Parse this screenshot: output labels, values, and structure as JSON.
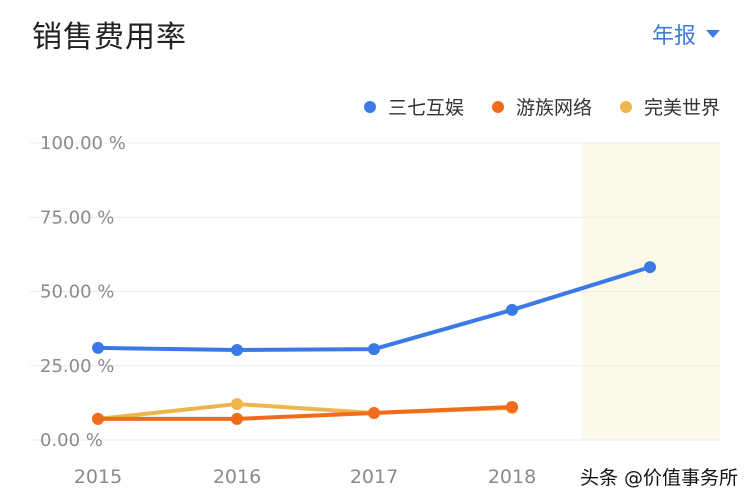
{
  "header": {
    "title": "销售费用率",
    "period_label": "年报"
  },
  "legend": [
    {
      "label": "三七互娱",
      "color": "#3b7ae6"
    },
    {
      "label": "游族网络",
      "color": "#f26b1d"
    },
    {
      "label": "完美世界",
      "color": "#f0b54a"
    }
  ],
  "watermark": "头条 @价值事务所",
  "chart_data": {
    "type": "line",
    "title": "销售费用率",
    "xlabel": "",
    "ylabel": "",
    "categories": [
      "2015",
      "2016",
      "2017",
      "2018",
      ""
    ],
    "y_ticks": [
      "100.00 %",
      "75.00 %",
      "50.00 %",
      "25.00 %",
      "0.00 %"
    ],
    "ylim": [
      0,
      100
    ],
    "grid": true,
    "legend_position": "top-right",
    "highlight_band": {
      "category_index": 4,
      "color": "#fdf9e9"
    },
    "series": [
      {
        "name": "三七互娱",
        "color": "#3b7ae6",
        "values": [
          31.0,
          30.3,
          30.6,
          43.8,
          58.2
        ]
      },
      {
        "name": "游族网络",
        "color": "#f26b1d",
        "values": [
          7.1,
          7.1,
          9.1,
          11.1,
          null
        ]
      },
      {
        "name": "完美世界",
        "color": "#f0b54a",
        "values": [
          7.1,
          12.1,
          9.1,
          10.8,
          null
        ]
      }
    ]
  }
}
